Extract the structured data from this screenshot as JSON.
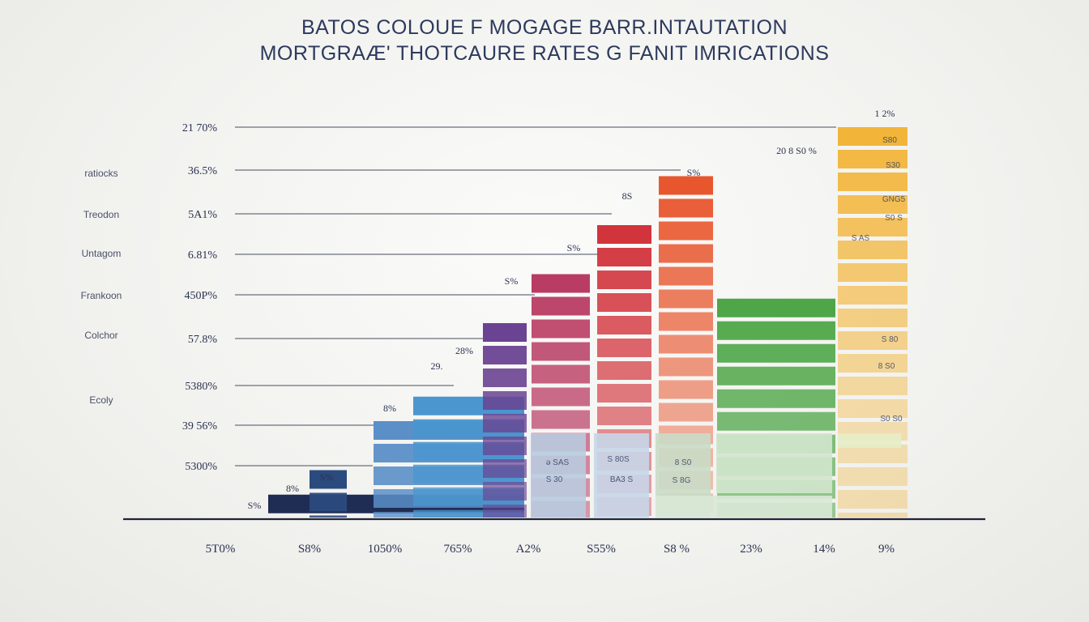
{
  "chart_data": {
    "type": "bar",
    "title": "BATOS  COLOUE F MOGAGE BARR.INTAUTATION",
    "subtitle": "MORTGRAÆ' THOTCAURE  RATES  G FANIT IMRICATIONS",
    "y_tick_labels": [
      "21 70%",
      "36.5%",
      "5A1%",
      "6.81%",
      "450P%",
      "57.8%",
      "5380%",
      "39 56%",
      "5300%"
    ],
    "row_labels": [
      "ratiocks",
      "Treodon",
      "Untagom",
      "Frankoon",
      "Colchor",
      "Ecoly"
    ],
    "x_tick_labels": [
      "5T0%",
      "S8%",
      "1050%",
      "765%",
      "A2%",
      "S55%",
      "S8 %",
      "23%",
      "14%",
      "9%"
    ],
    "bar_labels": [
      "S%",
      "8%",
      "S%",
      "8%",
      "29.",
      "28%",
      "S%",
      "S%",
      "8S",
      "S%",
      "20 8 S0 %",
      "1 2%"
    ],
    "series": [
      {
        "name": "",
        "color": "#1f2d55",
        "value": 1
      },
      {
        "name": "",
        "color": "#2b4a7e",
        "value": 2
      },
      {
        "name": "",
        "color": "#5b8fc8",
        "value": 4
      },
      {
        "name": "",
        "color": "#4b96cf",
        "value": 5
      },
      {
        "name": "",
        "color": "#6a4392",
        "value": 8
      },
      {
        "name": "",
        "color": "#b93c63",
        "value": 10
      },
      {
        "name": "",
        "color": "#d2343c",
        "value": 12
      },
      {
        "name": "",
        "color": "#e8562e",
        "value": 14
      },
      {
        "name": "",
        "color": "#4fa648",
        "value": 9
      },
      {
        "name": "",
        "color": "#f2b53a",
        "value": 16
      }
    ],
    "inner_labels": [
      "ǝ SAS",
      "S 80S",
      "8 S0",
      "S 30",
      "BA3 S",
      "S 8G",
      "S80",
      "S30",
      "GNG5",
      "S0 S",
      "S AS",
      "S 80",
      "8 S0",
      "S0 S0"
    ],
    "ylim": [
      0,
      9
    ],
    "grid": true
  }
}
